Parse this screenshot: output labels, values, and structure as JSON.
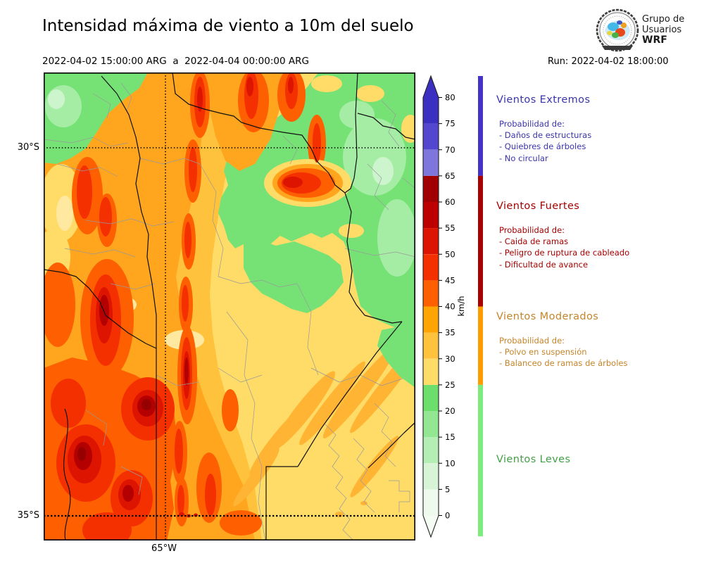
{
  "header": {
    "title": "Intensidad máxima de viento a 10m del suelo",
    "date_range": "2022-04-02 15:00:00 ARG  a  2022-04-04 00:00:00 ARG",
    "run_label": "Run: 2022-04-02 18:00:00",
    "logo": {
      "line1": "Grupo de",
      "line2": "Usuarios",
      "line3": "WRF"
    }
  },
  "map": {
    "lat_tick_top": "30°S",
    "lat_tick_bottom": "35°S",
    "lon_tick": "65°W"
  },
  "colorbar": {
    "unit": "km/h",
    "ticks": [
      0,
      5,
      10,
      15,
      20,
      25,
      30,
      35,
      40,
      45,
      50,
      55,
      60,
      65,
      70,
      75,
      80
    ],
    "arrow_up_color": "#3a2fc0",
    "arrow_down_color": "#f4fcf4",
    "segments": [
      {
        "min": 0,
        "max": 5,
        "color": "#edfaed"
      },
      {
        "min": 5,
        "max": 10,
        "color": "#d7f4d7"
      },
      {
        "min": 10,
        "max": 15,
        "color": "#b5eeb5"
      },
      {
        "min": 15,
        "max": 20,
        "color": "#93e793"
      },
      {
        "min": 20,
        "max": 25,
        "color": "#6cde6c"
      },
      {
        "min": 25,
        "max": 30,
        "color": "#ffdc68"
      },
      {
        "min": 30,
        "max": 35,
        "color": "#ffc23c"
      },
      {
        "min": 35,
        "max": 40,
        "color": "#ffa405"
      },
      {
        "min": 40,
        "max": 45,
        "color": "#fe5f00"
      },
      {
        "min": 45,
        "max": 50,
        "color": "#f53000"
      },
      {
        "min": 50,
        "max": 55,
        "color": "#dc1400"
      },
      {
        "min": 55,
        "max": 60,
        "color": "#bc0000"
      },
      {
        "min": 60,
        "max": 65,
        "color": "#a00000"
      },
      {
        "min": 65,
        "max": 70,
        "color": "#7f76dc"
      },
      {
        "min": 70,
        "max": 75,
        "color": "#5346cf"
      },
      {
        "min": 75,
        "max": 80,
        "color": "#3a2fc0"
      }
    ]
  },
  "categories": [
    {
      "name": "Vientos Extremos",
      "text_color": "#3a34ab",
      "bar_color": "#4433c4",
      "bar_range": [
        65,
        90
      ],
      "intro": "Probabilidad de:",
      "items": [
        "- Daños de estructuras",
        "- Quiebres de árboles",
        "- No circular"
      ]
    },
    {
      "name": "Vientos Fuertes",
      "text_color": "#a50000",
      "bar_color": "#a80000",
      "bar_range": [
        40,
        65
      ],
      "intro": "Probabilidad de:",
      "items": [
        "- Caida de ramas",
        "- Peligro de ruptura de cableado",
        "- Dificultad de avance"
      ]
    },
    {
      "name": "Vientos Moderados",
      "text_color": "#c5842a",
      "bar_color": "#ff9d00",
      "bar_range": [
        25,
        40
      ],
      "intro": "Probabilidad de:",
      "items": [
        "- Polvo en suspensión",
        "- Balanceo de ramas de árboles"
      ]
    },
    {
      "name": "Vientos Leves",
      "text_color": "#43a047",
      "bar_color": "#7dec7d",
      "bar_range": [
        -4,
        25
      ],
      "intro": "",
      "items": []
    }
  ]
}
